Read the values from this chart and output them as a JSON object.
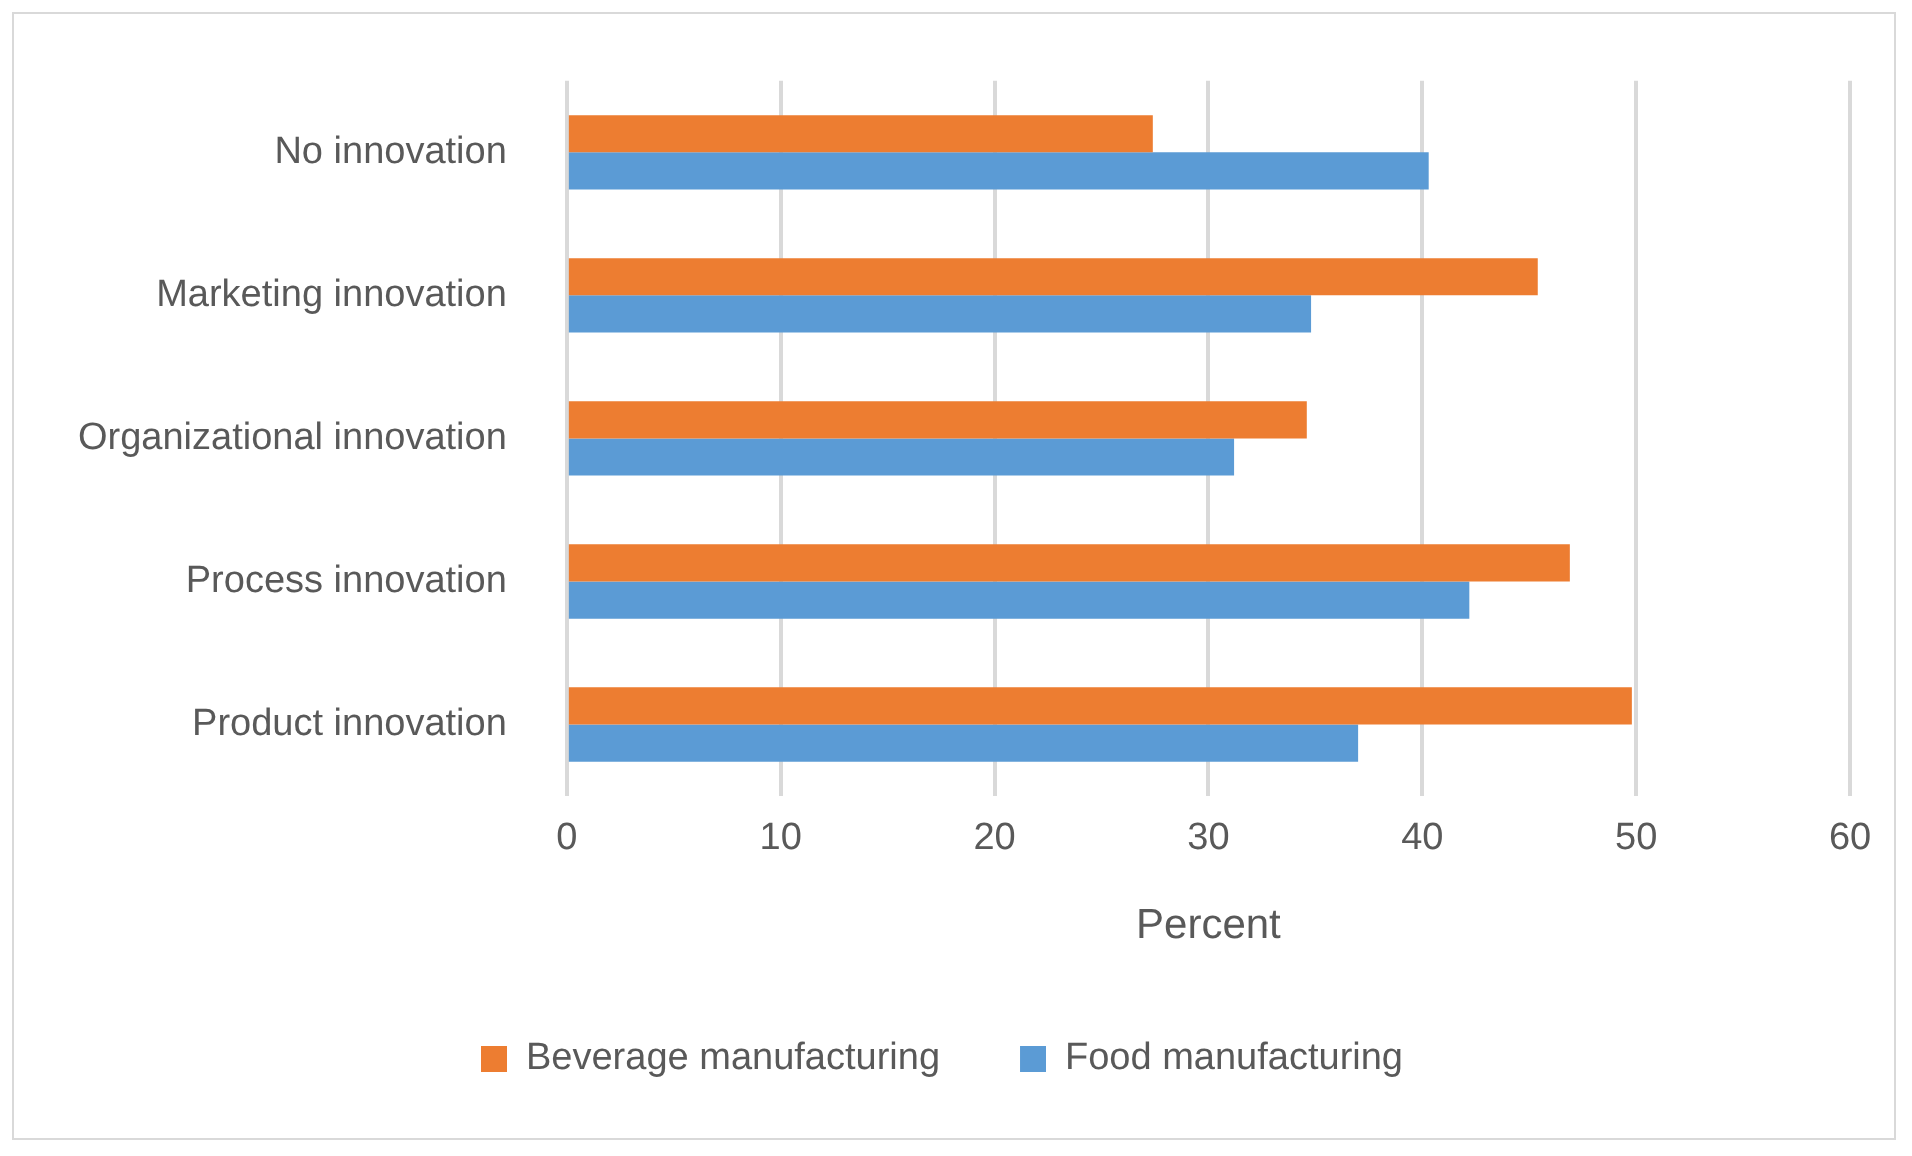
{
  "chart_data": {
    "type": "bar",
    "orientation": "horizontal",
    "xlabel": "Percent",
    "categories": [
      "No innovation",
      "Marketing innovation",
      "Organizational innovation",
      "Process innovation",
      "Product innovation"
    ],
    "series": [
      {
        "name": "Beverage manufacturing",
        "color": "#ed7d31",
        "values": [
          27.4,
          45.4,
          34.6,
          46.9,
          49.8
        ]
      },
      {
        "name": "Food manufacturing",
        "color": "#5b9bd5",
        "values": [
          40.3,
          34.8,
          31.2,
          42.2,
          37.0
        ]
      }
    ],
    "xlim": [
      0,
      60
    ],
    "xticks": [
      0,
      10,
      20,
      30,
      40,
      50,
      60
    ],
    "grid": "x",
    "legend": "bottom"
  }
}
